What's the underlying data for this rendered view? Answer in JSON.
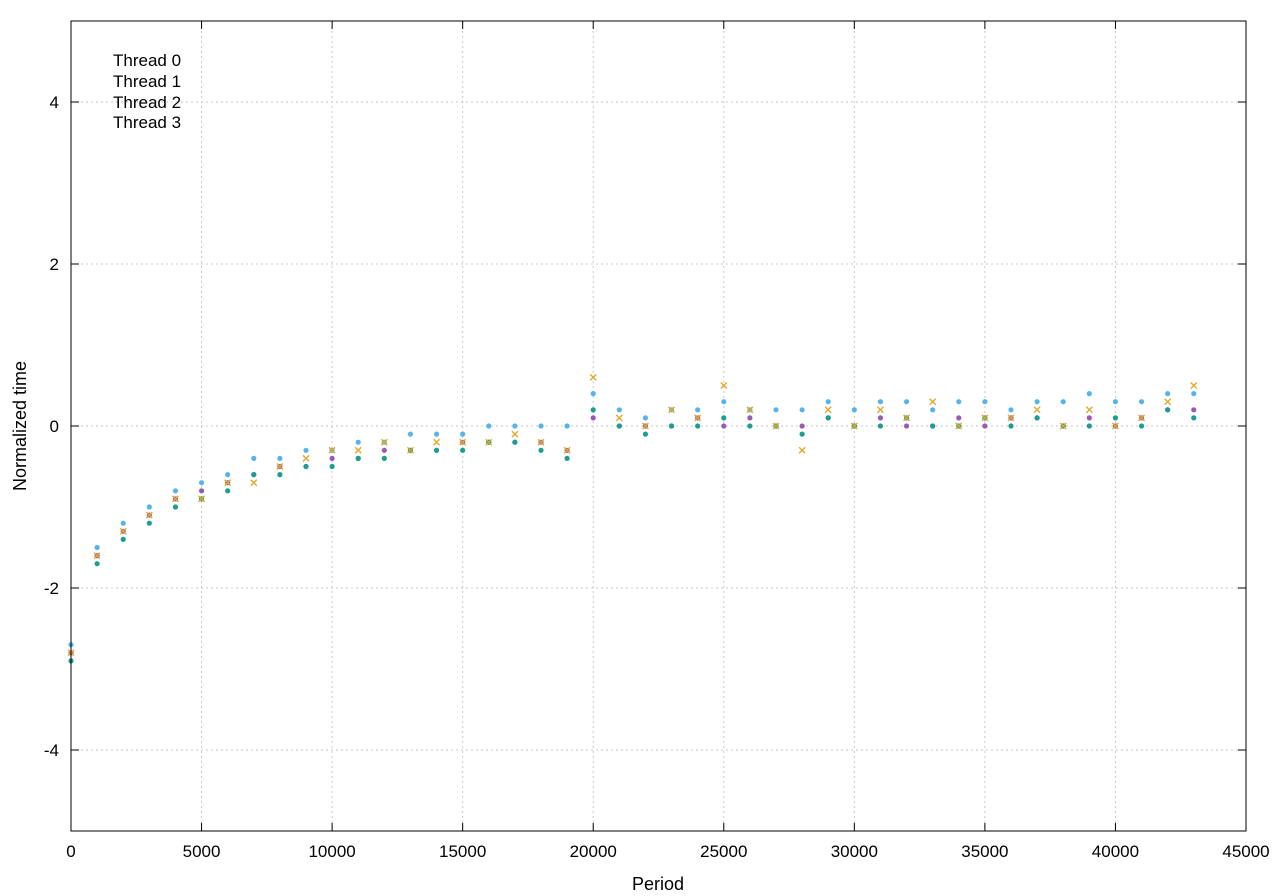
{
  "chart_data": {
    "type": "scatter",
    "title": "",
    "xlabel": "Period",
    "ylabel": "Normalized time",
    "xlim": [
      0,
      45000
    ],
    "ylim": [
      -5,
      5
    ],
    "x_ticks": [
      0,
      5000,
      10000,
      15000,
      20000,
      25000,
      30000,
      35000,
      40000,
      45000
    ],
    "y_ticks": [
      -4,
      -2,
      0,
      2,
      4
    ],
    "grid": true,
    "legend_position": "top-left",
    "series": [
      {
        "name": "Thread 0",
        "color": "#9b59b6",
        "marker": "dot",
        "x": [
          0,
          1000,
          2000,
          3000,
          4000,
          5000,
          6000,
          7000,
          8000,
          9000,
          10000,
          11000,
          12000,
          13000,
          14000,
          15000,
          16000,
          17000,
          18000,
          19000,
          20000,
          21000,
          22000,
          23000,
          24000,
          25000,
          26000,
          27000,
          28000,
          29000,
          30000,
          31000,
          32000,
          33000,
          34000,
          35000,
          36000,
          37000,
          38000,
          39000,
          40000,
          41000,
          42000,
          43000
        ],
        "y": [
          -2.8,
          -1.6,
          -1.3,
          -1.1,
          -0.9,
          -0.8,
          -0.7,
          -0.6,
          -0.5,
          -0.5,
          -0.4,
          -0.4,
          -0.3,
          -0.3,
          -0.3,
          -0.2,
          -0.2,
          -0.2,
          -0.2,
          -0.3,
          0.1,
          0.0,
          0.0,
          0.0,
          0.1,
          0.0,
          0.1,
          0.0,
          0.0,
          0.1,
          0.0,
          0.1,
          0.0,
          0.0,
          0.1,
          0.0,
          0.1,
          0.1,
          0.0,
          0.1,
          0.0,
          0.1,
          0.2,
          0.2
        ]
      },
      {
        "name": "Thread 1",
        "color": "#1a9e8f",
        "marker": "dot",
        "x": [
          0,
          1000,
          2000,
          3000,
          4000,
          5000,
          6000,
          7000,
          8000,
          9000,
          10000,
          11000,
          12000,
          13000,
          14000,
          15000,
          16000,
          17000,
          18000,
          19000,
          20000,
          21000,
          22000,
          23000,
          24000,
          25000,
          26000,
          27000,
          28000,
          29000,
          30000,
          31000,
          32000,
          33000,
          34000,
          35000,
          36000,
          37000,
          38000,
          39000,
          40000,
          41000,
          42000,
          43000
        ],
        "y": [
          -2.9,
          -1.7,
          -1.4,
          -1.2,
          -1.0,
          -0.9,
          -0.8,
          -0.6,
          -0.6,
          -0.5,
          -0.5,
          -0.4,
          -0.4,
          -0.3,
          -0.3,
          -0.3,
          -0.2,
          -0.2,
          -0.3,
          -0.4,
          0.2,
          0.0,
          -0.1,
          0.0,
          0.0,
          0.1,
          0.0,
          0.0,
          -0.1,
          0.1,
          0.0,
          0.0,
          0.1,
          0.0,
          0.0,
          0.1,
          0.0,
          0.1,
          0.0,
          0.0,
          0.1,
          0.0,
          0.2,
          0.1
        ]
      },
      {
        "name": "Thread 2",
        "color": "#56b4e9",
        "marker": "dot",
        "x": [
          0,
          1000,
          2000,
          3000,
          4000,
          5000,
          6000,
          7000,
          8000,
          9000,
          10000,
          11000,
          12000,
          13000,
          14000,
          15000,
          16000,
          17000,
          18000,
          19000,
          20000,
          21000,
          22000,
          23000,
          24000,
          25000,
          26000,
          27000,
          28000,
          29000,
          30000,
          31000,
          32000,
          33000,
          34000,
          35000,
          36000,
          37000,
          38000,
          39000,
          40000,
          41000,
          42000,
          43000
        ],
        "y": [
          -2.7,
          -1.5,
          -1.2,
          -1.0,
          -0.8,
          -0.7,
          -0.6,
          -0.4,
          -0.4,
          -0.3,
          -0.3,
          -0.2,
          -0.2,
          -0.1,
          -0.1,
          -0.1,
          0.0,
          0.0,
          0.0,
          0.0,
          0.4,
          0.2,
          0.1,
          0.2,
          0.2,
          0.3,
          0.2,
          0.2,
          0.2,
          0.3,
          0.2,
          0.3,
          0.3,
          0.2,
          0.3,
          0.3,
          0.2,
          0.3,
          0.3,
          0.4,
          0.3,
          0.3,
          0.4,
          0.4
        ]
      },
      {
        "name": "Thread 3",
        "color": "#e0a92a",
        "marker": "cross",
        "x": [
          0,
          1000,
          2000,
          3000,
          4000,
          5000,
          6000,
          7000,
          8000,
          9000,
          10000,
          11000,
          12000,
          13000,
          14000,
          15000,
          16000,
          17000,
          18000,
          19000,
          20000,
          21000,
          22000,
          23000,
          24000,
          25000,
          26000,
          27000,
          28000,
          29000,
          30000,
          31000,
          32000,
          33000,
          34000,
          35000,
          36000,
          37000,
          38000,
          39000,
          40000,
          41000,
          42000,
          43000
        ],
        "y": [
          -2.8,
          -1.6,
          -1.3,
          -1.1,
          -0.9,
          -0.9,
          -0.7,
          -0.7,
          -0.5,
          -0.4,
          -0.3,
          -0.3,
          -0.2,
          -0.3,
          -0.2,
          -0.2,
          -0.2,
          -0.1,
          -0.2,
          -0.3,
          0.6,
          0.1,
          0.0,
          0.2,
          0.1,
          0.5,
          0.2,
          0.0,
          -0.3,
          0.2,
          0.0,
          0.2,
          0.1,
          0.3,
          0.0,
          0.1,
          0.1,
          0.2,
          0.0,
          0.2,
          0.0,
          0.1,
          0.3,
          0.5
        ]
      }
    ]
  }
}
